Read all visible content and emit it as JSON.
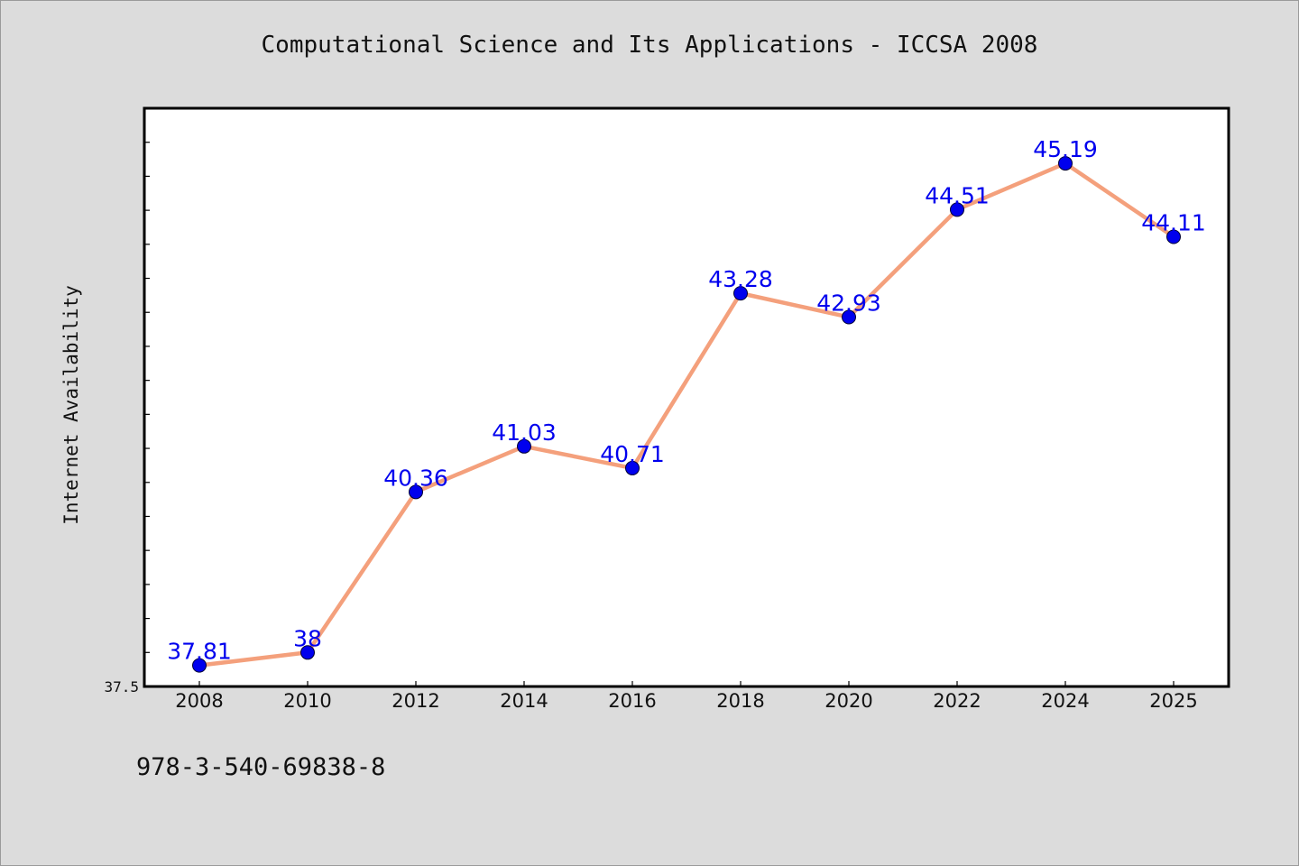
{
  "page": {
    "background_color": "#dcdcdc",
    "footer_text": "978-3-540-69838-8"
  },
  "chart_data": {
    "type": "line",
    "title": "Computational Science and Its Applications - ICCSA 2008",
    "xlabel": "",
    "ylabel": "Internet Availability",
    "categories": [
      "2008",
      "2010",
      "2012",
      "2014",
      "2016",
      "2018",
      "2020",
      "2022",
      "2024",
      "2025"
    ],
    "series": [
      {
        "values": [
          37.81,
          38,
          40.36,
          41.03,
          40.71,
          43.28,
          42.93,
          44.51,
          45.19,
          44.11
        ],
        "labels": [
          "37.81",
          "38",
          "40.36",
          "41.03",
          "40.71",
          "43.28",
          "42.93",
          "44.51",
          "45.19",
          "44.11"
        ],
        "line_color": "#f4a07c",
        "marker_color": "#0000ee",
        "label_color": "#0000ee"
      }
    ],
    "ylim": [
      37.5,
      46.0
    ],
    "ytick_labels": [
      "37.5"
    ],
    "minor_tick_step": 0.5,
    "grid": false,
    "legend": "none",
    "plot_background": "#ffffff"
  }
}
